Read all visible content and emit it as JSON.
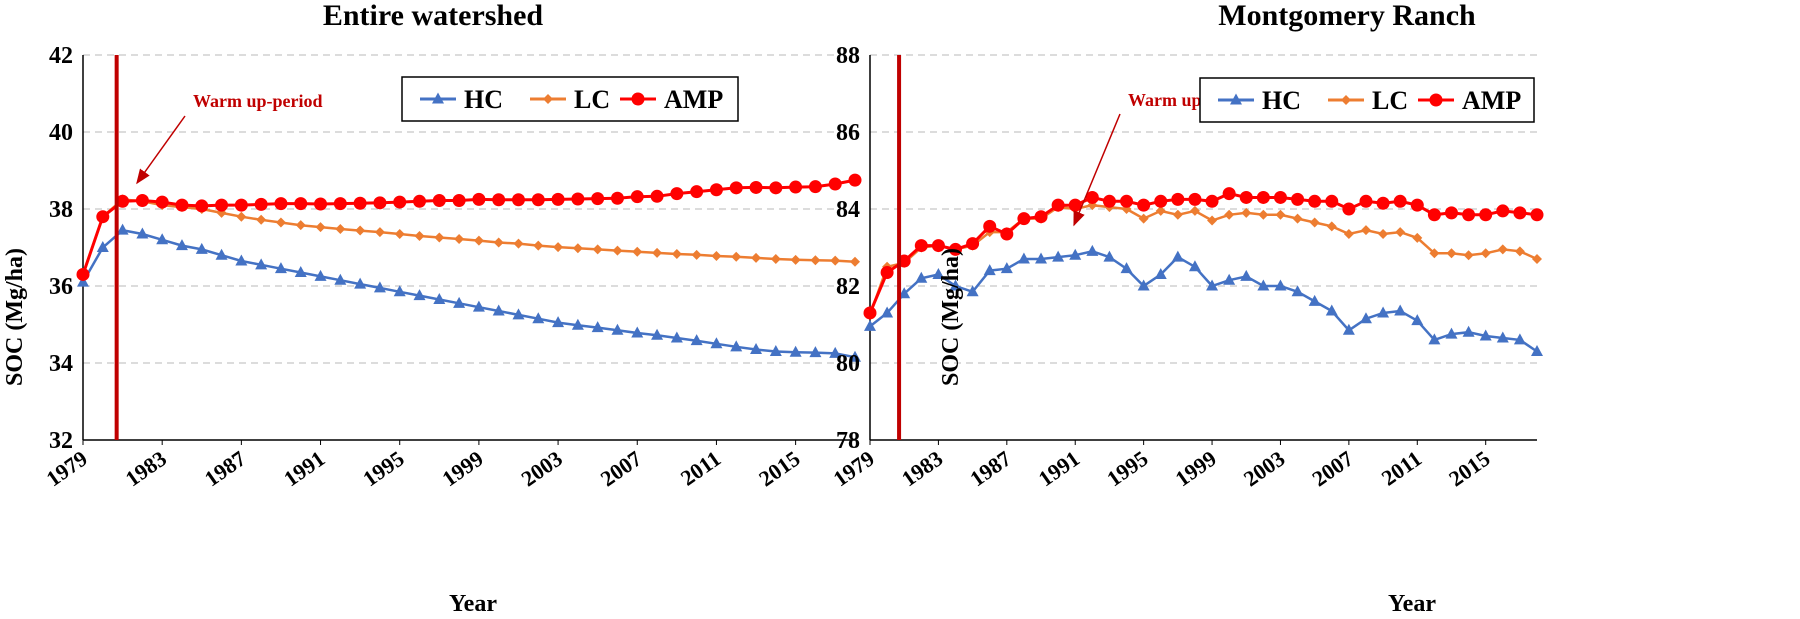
{
  "chart_data": [
    {
      "type": "line",
      "title": "Entire watershed",
      "xlabel": "Year",
      "ylabel": "SOC (Mg/ha)",
      "x": [
        1979,
        1980,
        1981,
        1982,
        1983,
        1984,
        1985,
        1986,
        1987,
        1988,
        1989,
        1990,
        1991,
        1992,
        1993,
        1994,
        1995,
        1996,
        1997,
        1998,
        1999,
        2000,
        2001,
        2002,
        2003,
        2004,
        2005,
        2006,
        2007,
        2008,
        2009,
        2010,
        2011,
        2012,
        2013,
        2014,
        2015,
        2016,
        2017,
        2018
      ],
      "xlim": [
        1979,
        2018
      ],
      "xticks": [
        "1979",
        "1983",
        "1987",
        "1991",
        "1995",
        "1999",
        "2003",
        "2007",
        "2011",
        "2015"
      ],
      "ylim": [
        32,
        42
      ],
      "yticks": [
        "32",
        "34",
        "36",
        "38",
        "40",
        "42"
      ],
      "grid": "horizontal dashed",
      "legend": "top-right",
      "series": [
        {
          "name": "HC",
          "color": "#4472c4",
          "marker": "triangle",
          "values": [
            36.1,
            37.0,
            37.45,
            37.35,
            37.2,
            37.05,
            36.95,
            36.8,
            36.65,
            36.55,
            36.45,
            36.35,
            36.25,
            36.15,
            36.05,
            35.95,
            35.85,
            35.75,
            35.65,
            35.55,
            35.45,
            35.35,
            35.25,
            35.15,
            35.05,
            34.98,
            34.92,
            34.85,
            34.78,
            34.72,
            34.65,
            34.58,
            34.5,
            34.42,
            34.35,
            34.3,
            34.28,
            34.27,
            34.25,
            34.15
          ]
        },
        {
          "name": "LC",
          "color": "#ed7d31",
          "marker": "diamond",
          "values": [
            36.3,
            37.8,
            38.25,
            38.2,
            38.1,
            38.05,
            38.0,
            37.9,
            37.8,
            37.72,
            37.65,
            37.58,
            37.53,
            37.48,
            37.44,
            37.4,
            37.35,
            37.3,
            37.26,
            37.22,
            37.18,
            37.13,
            37.1,
            37.05,
            37.01,
            36.98,
            36.95,
            36.92,
            36.89,
            36.86,
            36.83,
            36.81,
            36.78,
            36.76,
            36.73,
            36.7,
            36.68,
            36.67,
            36.66,
            36.63
          ]
        },
        {
          "name": "AMP",
          "color": "#ff0000",
          "marker": "circle",
          "values": [
            36.3,
            37.8,
            38.2,
            38.22,
            38.18,
            38.1,
            38.08,
            38.1,
            38.1,
            38.12,
            38.14,
            38.14,
            38.13,
            38.14,
            38.15,
            38.16,
            38.18,
            38.2,
            38.22,
            38.22,
            38.25,
            38.24,
            38.24,
            38.24,
            38.25,
            38.26,
            38.27,
            38.28,
            38.32,
            38.33,
            38.4,
            38.45,
            38.5,
            38.55,
            38.56,
            38.55,
            38.57,
            38.58,
            38.65,
            38.75
          ]
        }
      ],
      "annotation": {
        "text": "Warm up-period",
        "color": "#c00000",
        "vline_x": 1980.7
      }
    },
    {
      "type": "line",
      "title": "Montgomery Ranch",
      "xlabel": "Year",
      "ylabel": "SOC (Mg/ha)",
      "x": [
        1979,
        1980,
        1981,
        1982,
        1983,
        1984,
        1985,
        1986,
        1987,
        1988,
        1989,
        1990,
        1991,
        1992,
        1993,
        1994,
        1995,
        1996,
        1997,
        1998,
        1999,
        2000,
        2001,
        2002,
        2003,
        2004,
        2005,
        2006,
        2007,
        2008,
        2009,
        2010,
        2011,
        2012,
        2013,
        2014,
        2015,
        2016,
        2017,
        2018
      ],
      "xlim": [
        1979,
        2018
      ],
      "xticks": [
        "1979",
        "1983",
        "1987",
        "1991",
        "1995",
        "1999",
        "2003",
        "2007",
        "2011",
        "2015"
      ],
      "ylim": [
        78,
        88
      ],
      "yticks": [
        "78",
        "80",
        "82",
        "84",
        "86",
        "88"
      ],
      "grid": "horizontal dashed",
      "legend": "top-right",
      "series": [
        {
          "name": "HC",
          "color": "#4472c4",
          "marker": "triangle",
          "values": [
            80.95,
            81.3,
            81.8,
            82.2,
            82.3,
            82.0,
            81.85,
            82.4,
            82.45,
            82.7,
            82.7,
            82.75,
            82.8,
            82.9,
            82.75,
            82.45,
            82.0,
            82.3,
            82.75,
            82.5,
            82.0,
            82.15,
            82.25,
            82.0,
            82.0,
            81.85,
            81.6,
            81.35,
            80.85,
            81.15,
            81.3,
            81.35,
            81.1,
            80.6,
            80.75,
            80.8,
            80.7,
            80.65,
            80.6,
            80.3
          ]
        },
        {
          "name": "LC",
          "color": "#ed7d31",
          "marker": "diamond",
          "values": [
            81.25,
            82.5,
            82.6,
            83.0,
            83.05,
            82.95,
            83.05,
            83.4,
            83.4,
            83.75,
            83.75,
            84.05,
            84.0,
            84.1,
            84.05,
            84.0,
            83.75,
            83.95,
            83.85,
            83.95,
            83.7,
            83.85,
            83.9,
            83.85,
            83.85,
            83.75,
            83.65,
            83.55,
            83.35,
            83.45,
            83.35,
            83.4,
            83.25,
            82.85,
            82.85,
            82.8,
            82.85,
            82.95,
            82.9,
            82.7
          ]
        },
        {
          "name": "AMP",
          "color": "#ff0000",
          "marker": "circle",
          "values": [
            81.3,
            82.35,
            82.65,
            83.05,
            83.05,
            82.95,
            83.1,
            83.55,
            83.35,
            83.75,
            83.8,
            84.1,
            84.1,
            84.3,
            84.2,
            84.2,
            84.1,
            84.2,
            84.25,
            84.25,
            84.2,
            84.4,
            84.3,
            84.3,
            84.3,
            84.25,
            84.2,
            84.2,
            84.0,
            84.2,
            84.15,
            84.2,
            84.1,
            83.85,
            83.9,
            83.85,
            83.85,
            83.95,
            83.9,
            83.85
          ]
        }
      ],
      "annotation": {
        "text": "Warm up-period",
        "color": "#c00000",
        "vline_x": 1980.7
      }
    }
  ]
}
